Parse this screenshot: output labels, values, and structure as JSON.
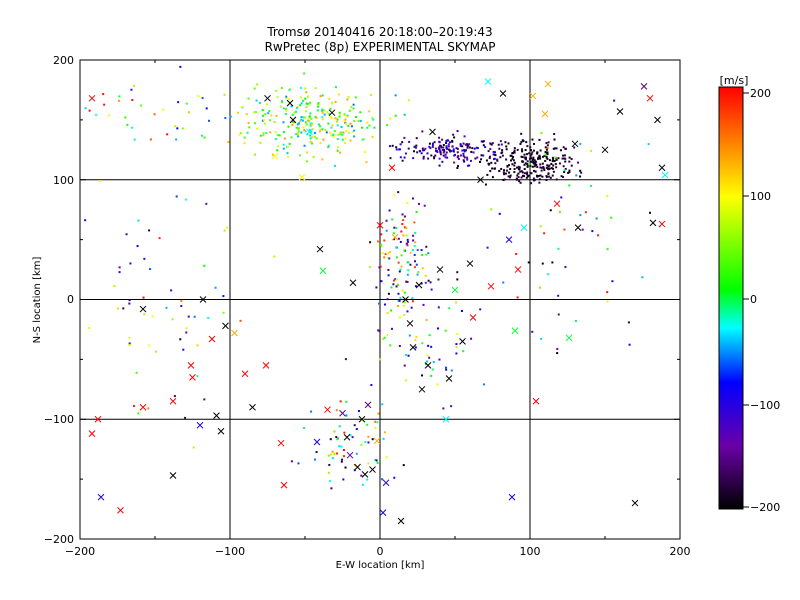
{
  "chart_data": {
    "type": "scatter",
    "title_line1": "Tromsø 20140416 20:18:00–20:19:43",
    "title_line2": "RwPretec (8p) EXPERIMENTAL SKYMAP",
    "xlabel": "E-W location [km]",
    "ylabel": "N-S location [km]",
    "xlim": [
      -200,
      200
    ],
    "ylim": [
      -200,
      200
    ],
    "x_ticks": [
      "−200",
      "−100",
      "0",
      "100",
      "200"
    ],
    "y_ticks": [
      "200",
      "100",
      "0",
      "−100",
      "−200"
    ],
    "grid": true,
    "colorbar": {
      "label": "[m/s]",
      "range": [
        -200,
        200
      ],
      "ticks": [
        "200",
        "100",
        "0",
        "−100",
        "−200"
      ],
      "colors": [
        "#000000",
        "#6a00a8",
        "#0000ff",
        "#00ffff",
        "#00ff00",
        "#ffff00",
        "#ff0000"
      ]
    },
    "crosses": [
      {
        "x": -192,
        "y": 168,
        "v": 200
      },
      {
        "x": -188,
        "y": -100,
        "v": 200
      },
      {
        "x": -192,
        "y": -112,
        "v": 200
      },
      {
        "x": -186,
        "y": -165,
        "v": -100
      },
      {
        "x": -173,
        "y": -176,
        "v": 200
      },
      {
        "x": -158,
        "y": -8,
        "v": -200
      },
      {
        "x": -158,
        "y": -90,
        "v": 200
      },
      {
        "x": -138,
        "y": -147,
        "v": -200
      },
      {
        "x": -138,
        "y": -85,
        "v": 200
      },
      {
        "x": -126,
        "y": -55,
        "v": 200
      },
      {
        "x": -125,
        "y": -65,
        "v": 200
      },
      {
        "x": -118,
        "y": 0,
        "v": -200
      },
      {
        "x": -120,
        "y": -105,
        "v": -100
      },
      {
        "x": -112,
        "y": -33,
        "v": 200
      },
      {
        "x": -109,
        "y": -97,
        "v": -200
      },
      {
        "x": -106,
        "y": -110,
        "v": -200
      },
      {
        "x": -103,
        "y": -22,
        "v": -200
      },
      {
        "x": -97,
        "y": -28,
        "v": 130
      },
      {
        "x": -90,
        "y": -62,
        "v": 200
      },
      {
        "x": -85,
        "y": -90,
        "v": -200
      },
      {
        "x": -76,
        "y": -55,
        "v": 200
      },
      {
        "x": -75,
        "y": 168,
        "v": -200
      },
      {
        "x": -70,
        "y": 120,
        "v": 100
      },
      {
        "x": -66,
        "y": -120,
        "v": 200
      },
      {
        "x": -64,
        "y": -155,
        "v": 200
      },
      {
        "x": -60,
        "y": 164,
        "v": -200
      },
      {
        "x": -58,
        "y": 150,
        "v": -200
      },
      {
        "x": -52,
        "y": 102,
        "v": 100
      },
      {
        "x": -47,
        "y": 140,
        "v": -30
      },
      {
        "x": -42,
        "y": -119,
        "v": -100
      },
      {
        "x": -40,
        "y": 42,
        "v": -200
      },
      {
        "x": -38,
        "y": 24,
        "v": 0
      },
      {
        "x": -35,
        "y": -92,
        "v": 200
      },
      {
        "x": -32,
        "y": 156,
        "v": -200
      },
      {
        "x": -25,
        "y": -95,
        "v": -150
      },
      {
        "x": -22,
        "y": -115,
        "v": -200
      },
      {
        "x": -20,
        "y": -130,
        "v": -150
      },
      {
        "x": -18,
        "y": 14,
        "v": -200
      },
      {
        "x": -15,
        "y": -140,
        "v": -200
      },
      {
        "x": -12,
        "y": -100,
        "v": -200
      },
      {
        "x": -10,
        "y": -146,
        "v": -200
      },
      {
        "x": -8,
        "y": -88,
        "v": -150
      },
      {
        "x": -5,
        "y": -142,
        "v": -200
      },
      {
        "x": -2,
        "y": -118,
        "v": 130
      },
      {
        "x": 0,
        "y": 62,
        "v": 200
      },
      {
        "x": 2,
        "y": -178,
        "v": -80
      },
      {
        "x": 4,
        "y": -153,
        "v": -100
      },
      {
        "x": 8,
        "y": 110,
        "v": 200
      },
      {
        "x": 10,
        "y": 52,
        "v": 130
      },
      {
        "x": 14,
        "y": -185,
        "v": -200
      },
      {
        "x": 17,
        "y": 0,
        "v": -200
      },
      {
        "x": 20,
        "y": -20,
        "v": -200
      },
      {
        "x": 22,
        "y": -40,
        "v": -200
      },
      {
        "x": 26,
        "y": 12,
        "v": -200
      },
      {
        "x": 28,
        "y": -75,
        "v": -200
      },
      {
        "x": 32,
        "y": -55,
        "v": -200
      },
      {
        "x": 35,
        "y": 140,
        "v": -200
      },
      {
        "x": 40,
        "y": 25,
        "v": -200
      },
      {
        "x": 44,
        "y": -100,
        "v": -30
      },
      {
        "x": 46,
        "y": -66,
        "v": -200
      },
      {
        "x": 50,
        "y": 8,
        "v": 0
      },
      {
        "x": 55,
        "y": -35,
        "v": -200
      },
      {
        "x": 60,
        "y": 30,
        "v": -200
      },
      {
        "x": 62,
        "y": -15,
        "v": 200
      },
      {
        "x": 67,
        "y": 100,
        "v": -200
      },
      {
        "x": 72,
        "y": 182,
        "v": -30
      },
      {
        "x": 74,
        "y": 11,
        "v": 200
      },
      {
        "x": 82,
        "y": 172,
        "v": -200
      },
      {
        "x": 86,
        "y": 50,
        "v": -100
      },
      {
        "x": 88,
        "y": -165,
        "v": -100
      },
      {
        "x": 90,
        "y": -26,
        "v": 0
      },
      {
        "x": 92,
        "y": 25,
        "v": 200
      },
      {
        "x": 96,
        "y": 60,
        "v": -30
      },
      {
        "x": 102,
        "y": 170,
        "v": 130
      },
      {
        "x": 104,
        "y": -85,
        "v": 200
      },
      {
        "x": 110,
        "y": 155,
        "v": 130
      },
      {
        "x": 112,
        "y": 180,
        "v": 130
      },
      {
        "x": 118,
        "y": 80,
        "v": 200
      },
      {
        "x": 126,
        "y": -32,
        "v": 0
      },
      {
        "x": 130,
        "y": 130,
        "v": -200
      },
      {
        "x": 132,
        "y": 60,
        "v": -200
      },
      {
        "x": 150,
        "y": 125,
        "v": -200
      },
      {
        "x": 160,
        "y": 157,
        "v": -200
      },
      {
        "x": 170,
        "y": -170,
        "v": -200
      },
      {
        "x": 176,
        "y": 178,
        "v": -150
      },
      {
        "x": 180,
        "y": 168,
        "v": 200
      },
      {
        "x": 182,
        "y": 64,
        "v": -200
      },
      {
        "x": 185,
        "y": 150,
        "v": -200
      },
      {
        "x": 188,
        "y": 110,
        "v": -200
      },
      {
        "x": 188,
        "y": 63,
        "v": 200
      },
      {
        "x": 190,
        "y": 104,
        "v": -30
      }
    ],
    "dot_clusters": [
      {
        "cx": -45,
        "cy": 150,
        "sx": 40,
        "sy": 25,
        "n": 280,
        "vmin": -60,
        "vmax": 140
      },
      {
        "cx": 45,
        "cy": 125,
        "sx": 28,
        "sy": 10,
        "n": 180,
        "vmin": -200,
        "vmax": -80
      },
      {
        "cx": 100,
        "cy": 115,
        "sx": 26,
        "sy": 15,
        "n": 260,
        "vmin": -200,
        "vmax": -170
      },
      {
        "cx": 15,
        "cy": 40,
        "sx": 15,
        "sy": 45,
        "n": 110,
        "vmin": -200,
        "vmax": 200
      },
      {
        "cx": 30,
        "cy": -30,
        "sx": 30,
        "sy": 45,
        "n": 70,
        "vmin": -200,
        "vmax": 130
      },
      {
        "cx": -20,
        "cy": -120,
        "sx": 30,
        "sy": 30,
        "n": 70,
        "vmin": -200,
        "vmax": 200
      },
      {
        "cx": -150,
        "cy": -20,
        "sx": 45,
        "sy": 110,
        "n": 60,
        "vmin": -200,
        "vmax": 200
      },
      {
        "cx": 130,
        "cy": 40,
        "sx": 50,
        "sy": 100,
        "n": 60,
        "vmin": -200,
        "vmax": 200
      },
      {
        "cx": -150,
        "cy": 160,
        "sx": 35,
        "sy": 25,
        "n": 35,
        "vmin": -100,
        "vmax": 200
      }
    ]
  }
}
